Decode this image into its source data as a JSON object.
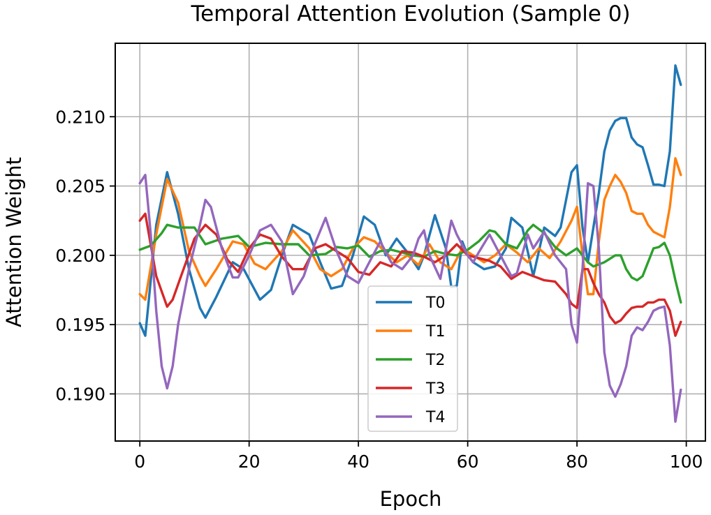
{
  "chart_data": {
    "type": "line",
    "title": "Temporal Attention Evolution (Sample 0)",
    "xlabel": "Epoch",
    "ylabel": "Attention Weight",
    "xlim": [
      -4.5,
      103.5
    ],
    "ylim": [
      0.1866,
      0.2153
    ],
    "xticks": [
      0,
      20,
      40,
      60,
      80,
      100
    ],
    "xtick_labels": [
      "0",
      "20",
      "40",
      "60",
      "80",
      "100"
    ],
    "yticks": [
      0.19,
      0.195,
      0.2,
      0.205,
      0.21
    ],
    "ytick_labels": [
      "0.190",
      "0.195",
      "0.200",
      "0.205",
      "0.210"
    ],
    "grid": true,
    "legend_position": "bottom-center",
    "series": [
      {
        "name": "T0",
        "color": "#1f77b4",
        "points": [
          [
            0,
            0.1951
          ],
          [
            1,
            0.1942
          ],
          [
            3,
            0.2022
          ],
          [
            5,
            0.206
          ],
          [
            7,
            0.203
          ],
          [
            9,
            0.199
          ],
          [
            11,
            0.1962
          ],
          [
            12,
            0.1955
          ],
          [
            14,
            0.197
          ],
          [
            17,
            0.1995
          ],
          [
            19,
            0.199
          ],
          [
            22,
            0.1968
          ],
          [
            24,
            0.1975
          ],
          [
            26,
            0.2
          ],
          [
            28,
            0.2022
          ],
          [
            31,
            0.2015
          ],
          [
            33,
            0.1995
          ],
          [
            35,
            0.1976
          ],
          [
            37,
            0.1978
          ],
          [
            39,
            0.2
          ],
          [
            41,
            0.2028
          ],
          [
            43,
            0.2022
          ],
          [
            45,
            0.2
          ],
          [
            47,
            0.2012
          ],
          [
            49,
            0.2002
          ],
          [
            51,
            0.199
          ],
          [
            52,
            0.2
          ],
          [
            54,
            0.2029
          ],
          [
            56,
            0.2005
          ],
          [
            57,
            0.1977
          ],
          [
            58,
            0.1978
          ],
          [
            59,
            0.201
          ],
          [
            60,
            0.2
          ],
          [
            61,
            0.1995
          ],
          [
            63,
            0.199
          ],
          [
            65,
            0.1992
          ],
          [
            67,
            0.2005
          ],
          [
            68,
            0.2027
          ],
          [
            70,
            0.202
          ],
          [
            72,
            0.1985
          ],
          [
            74,
            0.202
          ],
          [
            76,
            0.2014
          ],
          [
            77,
            0.202
          ],
          [
            78,
            0.204
          ],
          [
            79,
            0.206
          ],
          [
            80,
            0.2065
          ],
          [
            81,
            0.202
          ],
          [
            82,
            0.1995
          ],
          [
            83,
            0.202
          ],
          [
            84,
            0.2045
          ],
          [
            85,
            0.2075
          ],
          [
            86,
            0.209
          ],
          [
            87,
            0.2097
          ],
          [
            88,
            0.2099
          ],
          [
            89,
            0.2099
          ],
          [
            90,
            0.2085
          ],
          [
            91,
            0.208
          ],
          [
            92,
            0.2078
          ],
          [
            93,
            0.2065
          ],
          [
            94,
            0.2051
          ],
          [
            95,
            0.2051
          ],
          [
            96,
            0.205
          ],
          [
            97,
            0.2075
          ],
          [
            98,
            0.2137
          ],
          [
            99,
            0.2123
          ]
        ]
      },
      {
        "name": "T1",
        "color": "#ff7f0e",
        "points": [
          [
            0,
            0.1972
          ],
          [
            1,
            0.1968
          ],
          [
            3,
            0.2015
          ],
          [
            5,
            0.2055
          ],
          [
            7,
            0.2038
          ],
          [
            9,
            0.2003
          ],
          [
            11,
            0.1985
          ],
          [
            12,
            0.1978
          ],
          [
            14,
            0.199
          ],
          [
            17,
            0.201
          ],
          [
            19,
            0.2008
          ],
          [
            21,
            0.1994
          ],
          [
            23,
            0.199
          ],
          [
            26,
            0.2003
          ],
          [
            28,
            0.2018
          ],
          [
            31,
            0.2005
          ],
          [
            33,
            0.199
          ],
          [
            35,
            0.1985
          ],
          [
            37,
            0.199
          ],
          [
            39,
            0.2005
          ],
          [
            41,
            0.2013
          ],
          [
            43,
            0.201
          ],
          [
            45,
            0.2002
          ],
          [
            47,
            0.1995
          ],
          [
            49,
            0.2
          ],
          [
            51,
            0.1993
          ],
          [
            53,
            0.2008
          ],
          [
            55,
            0.1995
          ],
          [
            57,
            0.199
          ],
          [
            59,
            0.2005
          ],
          [
            61,
            0.2
          ],
          [
            63,
            0.1995
          ],
          [
            65,
            0.2
          ],
          [
            67,
            0.2008
          ],
          [
            69,
            0.2002
          ],
          [
            71,
            0.1995
          ],
          [
            73,
            0.2005
          ],
          [
            75,
            0.1998
          ],
          [
            77,
            0.201
          ],
          [
            79,
            0.2025
          ],
          [
            80,
            0.2035
          ],
          [
            81,
            0.2
          ],
          [
            82,
            0.1972
          ],
          [
            83,
            0.1972
          ],
          [
            84,
            0.201
          ],
          [
            85,
            0.204
          ],
          [
            86,
            0.205
          ],
          [
            87,
            0.2058
          ],
          [
            88,
            0.2053
          ],
          [
            89,
            0.2045
          ],
          [
            90,
            0.2032
          ],
          [
            91,
            0.203
          ],
          [
            92,
            0.203
          ],
          [
            93,
            0.2022
          ],
          [
            94,
            0.2017
          ],
          [
            95,
            0.2015
          ],
          [
            96,
            0.2013
          ],
          [
            97,
            0.2035
          ],
          [
            98,
            0.207
          ],
          [
            99,
            0.2058
          ]
        ]
      },
      {
        "name": "T2",
        "color": "#2ca02c",
        "points": [
          [
            0,
            0.2004
          ],
          [
            2,
            0.2007
          ],
          [
            4,
            0.2016
          ],
          [
            5,
            0.2022
          ],
          [
            7,
            0.202
          ],
          [
            10,
            0.202
          ],
          [
            12,
            0.2008
          ],
          [
            15,
            0.2012
          ],
          [
            18,
            0.2014
          ],
          [
            20,
            0.2006
          ],
          [
            23,
            0.2009
          ],
          [
            26,
            0.2008
          ],
          [
            29,
            0.2008
          ],
          [
            31,
            0.2
          ],
          [
            34,
            0.2001
          ],
          [
            36,
            0.2006
          ],
          [
            38,
            0.2005
          ],
          [
            40,
            0.2007
          ],
          [
            42,
            0.1999
          ],
          [
            44,
            0.2003
          ],
          [
            46,
            0.2004
          ],
          [
            48,
            0.2002
          ],
          [
            50,
            0.2
          ],
          [
            52,
            0.1999
          ],
          [
            54,
            0.2003
          ],
          [
            56,
            0.2001
          ],
          [
            58,
            0.2
          ],
          [
            60,
            0.2004
          ],
          [
            62,
            0.201
          ],
          [
            64,
            0.2018
          ],
          [
            65,
            0.2017
          ],
          [
            67,
            0.2008
          ],
          [
            69,
            0.2005
          ],
          [
            71,
            0.2018
          ],
          [
            72,
            0.2022
          ],
          [
            74,
            0.2016
          ],
          [
            76,
            0.2006
          ],
          [
            78,
            0.2
          ],
          [
            80,
            0.2005
          ],
          [
            81,
            0.2
          ],
          [
            82,
            0.1995
          ],
          [
            83,
            0.1992
          ],
          [
            85,
            0.1995
          ],
          [
            87,
            0.2
          ],
          [
            88,
            0.2
          ],
          [
            89,
            0.199
          ],
          [
            90,
            0.1984
          ],
          [
            91,
            0.1982
          ],
          [
            92,
            0.1985
          ],
          [
            94,
            0.2005
          ],
          [
            95,
            0.2006
          ],
          [
            96,
            0.2009
          ],
          [
            97,
            0.2
          ],
          [
            98,
            0.1982
          ],
          [
            99,
            0.1966
          ]
        ]
      },
      {
        "name": "T3",
        "color": "#d62728",
        "points": [
          [
            0,
            0.2025
          ],
          [
            1,
            0.203
          ],
          [
            3,
            0.1985
          ],
          [
            5,
            0.1963
          ],
          [
            6,
            0.1968
          ],
          [
            8,
            0.199
          ],
          [
            10,
            0.2012
          ],
          [
            12,
            0.2022
          ],
          [
            14,
            0.2015
          ],
          [
            16,
            0.1997
          ],
          [
            18,
            0.1988
          ],
          [
            20,
            0.2005
          ],
          [
            22,
            0.2015
          ],
          [
            24,
            0.2012
          ],
          [
            26,
            0.1999
          ],
          [
            28,
            0.199
          ],
          [
            30,
            0.199
          ],
          [
            32,
            0.2005
          ],
          [
            34,
            0.2008
          ],
          [
            36,
            0.2003
          ],
          [
            38,
            0.1998
          ],
          [
            40,
            0.1988
          ],
          [
            42,
            0.1986
          ],
          [
            44,
            0.1995
          ],
          [
            46,
            0.1992
          ],
          [
            48,
            0.2003
          ],
          [
            50,
            0.2002
          ],
          [
            52,
            0.1999
          ],
          [
            54,
            0.1995
          ],
          [
            56,
            0.2
          ],
          [
            58,
            0.2008
          ],
          [
            60,
            0.2
          ],
          [
            62,
            0.1998
          ],
          [
            64,
            0.1996
          ],
          [
            66,
            0.1992
          ],
          [
            68,
            0.1983
          ],
          [
            70,
            0.1988
          ],
          [
            72,
            0.1985
          ],
          [
            74,
            0.1982
          ],
          [
            76,
            0.1981
          ],
          [
            78,
            0.1972
          ],
          [
            79,
            0.1965
          ],
          [
            80,
            0.1962
          ],
          [
            81,
            0.199
          ],
          [
            82,
            0.199
          ],
          [
            83,
            0.198
          ],
          [
            84,
            0.1972
          ],
          [
            85,
            0.1966
          ],
          [
            86,
            0.1956
          ],
          [
            87,
            0.1951
          ],
          [
            88,
            0.1953
          ],
          [
            89,
            0.1958
          ],
          [
            90,
            0.1962
          ],
          [
            91,
            0.1963
          ],
          [
            92,
            0.1963
          ],
          [
            93,
            0.1966
          ],
          [
            94,
            0.1966
          ],
          [
            95,
            0.1968
          ],
          [
            96,
            0.1968
          ],
          [
            97,
            0.196
          ],
          [
            98,
            0.1942
          ],
          [
            99,
            0.1952
          ]
        ]
      },
      {
        "name": "T4",
        "color": "#9467bd",
        "points": [
          [
            0,
            0.2052
          ],
          [
            1,
            0.2058
          ],
          [
            2,
            0.2015
          ],
          [
            3,
            0.196
          ],
          [
            4,
            0.192
          ],
          [
            5,
            0.1904
          ],
          [
            6,
            0.192
          ],
          [
            7,
            0.195
          ],
          [
            9,
            0.199
          ],
          [
            11,
            0.2022
          ],
          [
            12,
            0.204
          ],
          [
            13,
            0.2035
          ],
          [
            15,
            0.2005
          ],
          [
            17,
            0.1984
          ],
          [
            18,
            0.1984
          ],
          [
            20,
            0.2
          ],
          [
            22,
            0.2018
          ],
          [
            24,
            0.2022
          ],
          [
            26,
            0.201
          ],
          [
            28,
            0.1972
          ],
          [
            30,
            0.1985
          ],
          [
            32,
            0.2008
          ],
          [
            34,
            0.2027
          ],
          [
            36,
            0.2003
          ],
          [
            38,
            0.1985
          ],
          [
            40,
            0.198
          ],
          [
            42,
            0.1995
          ],
          [
            44,
            0.201
          ],
          [
            46,
            0.1995
          ],
          [
            48,
            0.199
          ],
          [
            50,
            0.2
          ],
          [
            51,
            0.2012
          ],
          [
            52,
            0.2018
          ],
          [
            53,
            0.2
          ],
          [
            55,
            0.1983
          ],
          [
            57,
            0.2025
          ],
          [
            58,
            0.2015
          ],
          [
            60,
            0.2
          ],
          [
            61,
            0.1995
          ],
          [
            62,
            0.2002
          ],
          [
            64,
            0.2015
          ],
          [
            66,
            0.2
          ],
          [
            68,
            0.1985
          ],
          [
            69,
            0.1987
          ],
          [
            71,
            0.2015
          ],
          [
            72,
            0.2005
          ],
          [
            74,
            0.2017
          ],
          [
            76,
            0.2
          ],
          [
            78,
            0.199
          ],
          [
            79,
            0.195
          ],
          [
            80,
            0.1937
          ],
          [
            81,
            0.199
          ],
          [
            82,
            0.2052
          ],
          [
            83,
            0.205
          ],
          [
            84,
            0.2005
          ],
          [
            85,
            0.193
          ],
          [
            86,
            0.1906
          ],
          [
            87,
            0.1898
          ],
          [
            88,
            0.1907
          ],
          [
            89,
            0.192
          ],
          [
            90,
            0.1942
          ],
          [
            91,
            0.1948
          ],
          [
            92,
            0.1946
          ],
          [
            93,
            0.1952
          ],
          [
            94,
            0.196
          ],
          [
            95,
            0.1962
          ],
          [
            96,
            0.1963
          ],
          [
            97,
            0.1935
          ],
          [
            98,
            0.188
          ],
          [
            99,
            0.1903
          ]
        ]
      }
    ]
  }
}
